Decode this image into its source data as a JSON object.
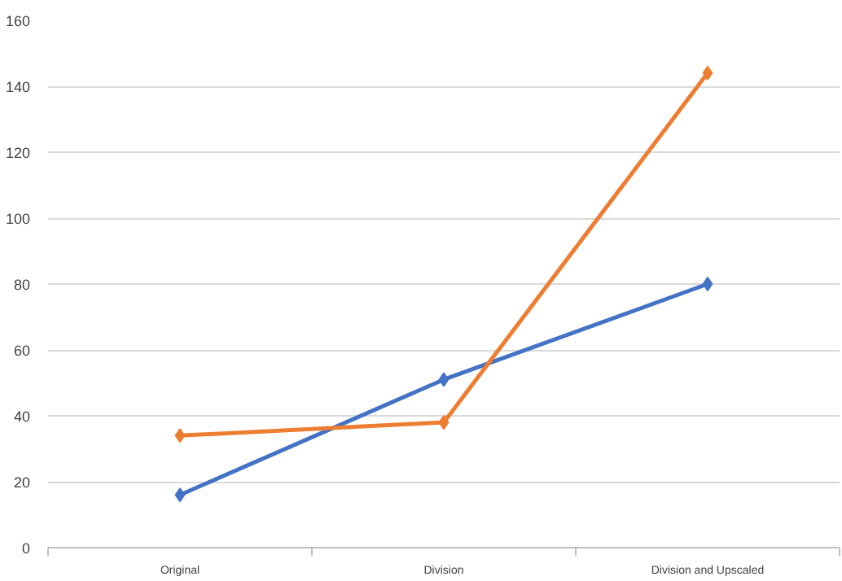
{
  "chart_data": {
    "type": "line",
    "categories": [
      "Original",
      "Division",
      "Division and Upscaled"
    ],
    "series": [
      {
        "color": "#4472c4",
        "values": [
          16,
          51,
          80
        ]
      },
      {
        "color": "#ed7d31",
        "values": [
          34,
          38,
          144
        ]
      }
    ],
    "ylim": [
      0,
      160
    ],
    "yticks": [
      0,
      20,
      40,
      60,
      80,
      100,
      120,
      140,
      160
    ],
    "grid": "y",
    "marker": "diamond",
    "line_style": "solid"
  }
}
